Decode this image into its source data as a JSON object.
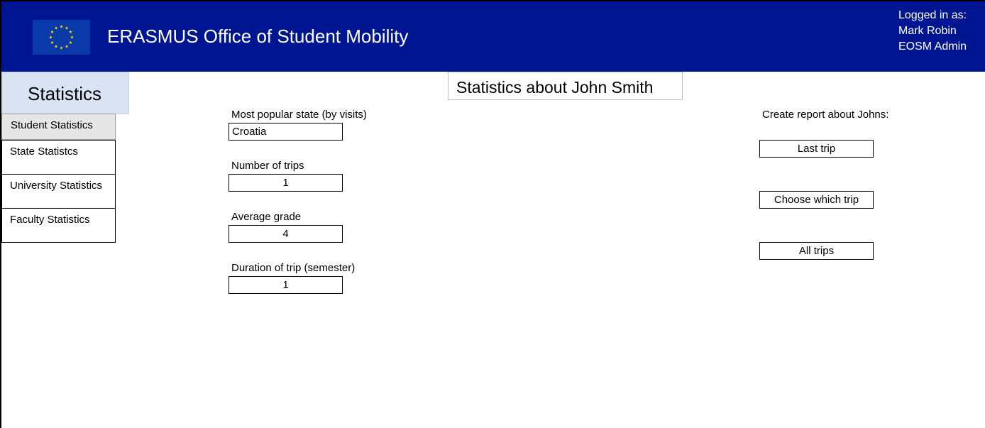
{
  "header": {
    "app_title": "ERASMUS Office of Student Mobility",
    "logo_icon": "eu-flag-icon",
    "brand_color": "#001591",
    "star_color": "#ffdd00",
    "user": {
      "logged_in_label": "Logged in as:",
      "name": "Mark Robin",
      "role": "EOSM Admin"
    }
  },
  "sidebar": {
    "title": "Statistics",
    "items": [
      {
        "label": "Student Statistics",
        "active": true
      },
      {
        "label": "State Statistcs",
        "active": false
      },
      {
        "label": "University Statistics",
        "active": false
      },
      {
        "label": "Faculty Statistics",
        "active": false
      }
    ]
  },
  "main": {
    "title": "Statistics about John Smith",
    "stats": [
      {
        "label": "Most popular state (by visits)",
        "value": "Croatia"
      },
      {
        "label": "Number of trips",
        "value": "1"
      },
      {
        "label": "Average grade",
        "value": "4"
      },
      {
        "label": "Duration of trip (semester)",
        "value": "1"
      }
    ],
    "report": {
      "label": "Create report about Johns:",
      "buttons": [
        {
          "label": "Last trip"
        },
        {
          "label": "Choose which trip"
        },
        {
          "label": "All trips"
        }
      ]
    }
  }
}
